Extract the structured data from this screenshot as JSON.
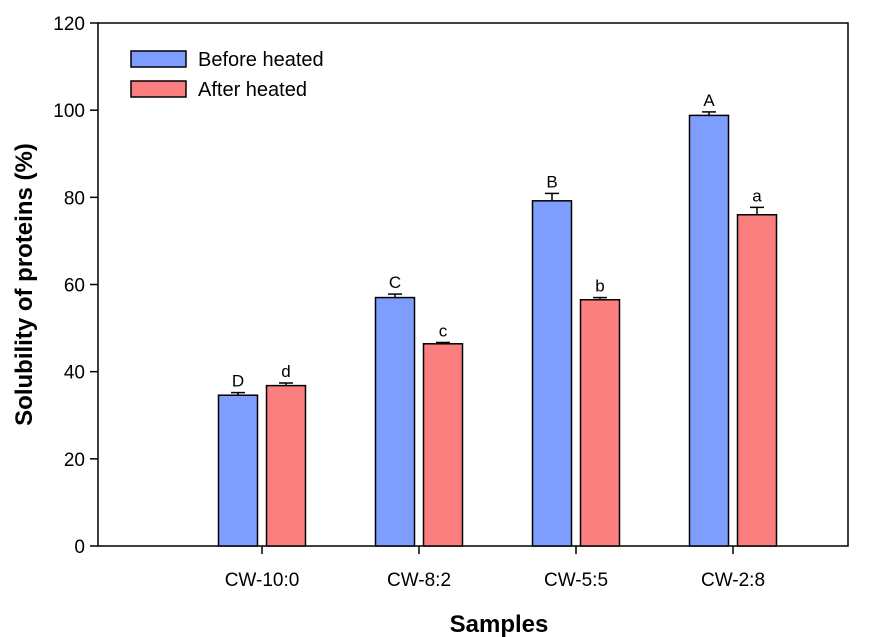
{
  "chart_data": {
    "type": "bar",
    "xlabel": "Samples",
    "ylabel": "Solubility of proteins (%)",
    "ylim": [
      0,
      120
    ],
    "yticks": [
      0,
      20,
      40,
      60,
      80,
      100,
      120
    ],
    "categories": [
      "CW-10:0",
      "CW-8:2",
      "CW-5:5",
      "CW-2:8"
    ],
    "series": [
      {
        "name": "Before heated",
        "color": "#7f9dff",
        "values": [
          34.6,
          57.0,
          79.2,
          98.8
        ],
        "errors": [
          0.6,
          0.8,
          1.7,
          0.8
        ],
        "labels": [
          "D",
          "C",
          "B",
          "A"
        ]
      },
      {
        "name": "After heated",
        "color": "#fc7f7f",
        "values": [
          36.8,
          46.4,
          56.5,
          76.0
        ],
        "errors": [
          0.6,
          0.3,
          0.5,
          1.7
        ],
        "labels": [
          "d",
          "c",
          "b",
          "a"
        ]
      }
    ],
    "legend": "top-left",
    "grid": false
  }
}
